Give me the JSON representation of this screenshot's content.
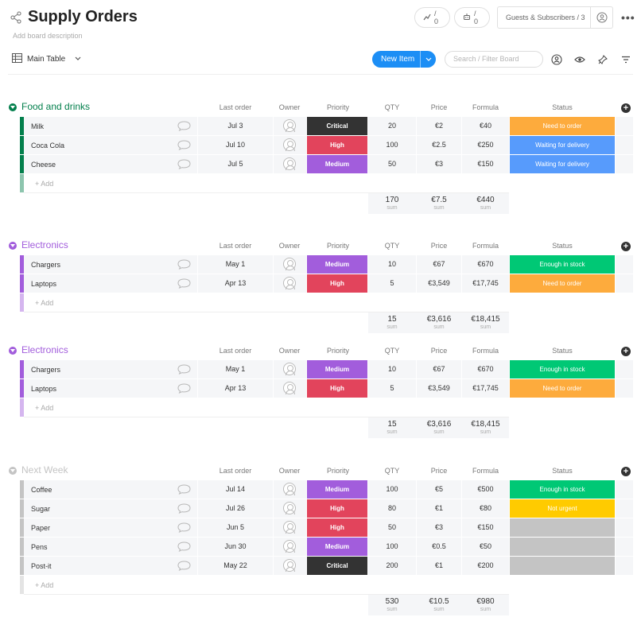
{
  "board": {
    "title": "Supply Orders",
    "description": "Add board description",
    "activity_count": "/ 0",
    "automations_count": "/ 0",
    "guests_label": "Guests & Subscribers / 3",
    "view_name": "Main Table",
    "new_item_label": "New Item",
    "search_placeholder": "Search / Filter Board"
  },
  "columns": {
    "last_order": "Last order",
    "owner": "Owner",
    "priority": "Priority",
    "qty": "QTY",
    "price": "Price",
    "formula": "Formula",
    "status": "Status"
  },
  "add_item_label": "+ Add",
  "sum_label": "sum",
  "colors": {
    "green": "#00854d",
    "purple": "#a25ddc",
    "gray": "#c4c4c4",
    "critical": "#333333",
    "high": "#e2445c",
    "medium": "#a25ddc",
    "need_to_order": "#fdab3d",
    "waiting": "#579bfc",
    "enough": "#00c875",
    "not_urgent": "#ffcb00",
    "empty": "#c4c4c4",
    "accent": "#1c8ef5"
  },
  "groups": [
    {
      "title": "Food and drinks",
      "color": "#037f4c",
      "rows": [
        {
          "name": "Milk",
          "last_order": "Jul 3",
          "priority": "Critical",
          "priority_color": "#333333",
          "qty": "20",
          "price": "€2",
          "formula": "€40",
          "status": "Need to order",
          "status_color": "#fdab3d"
        },
        {
          "name": "Coca Cola",
          "last_order": "Jul 10",
          "priority": "High",
          "priority_color": "#e2445c",
          "qty": "100",
          "price": "€2.5",
          "formula": "€250",
          "status": "Waiting for delivery",
          "status_color": "#579bfc"
        },
        {
          "name": "Cheese",
          "last_order": "Jul 5",
          "priority": "Medium",
          "priority_color": "#a25ddc",
          "qty": "50",
          "price": "€3",
          "formula": "€150",
          "status": "Waiting for delivery",
          "status_color": "#579bfc"
        }
      ],
      "sums": {
        "qty": "170",
        "price": "€7.5",
        "formula": "€440"
      }
    },
    {
      "title": "Electronics",
      "color": "#a25ddc",
      "rows": [
        {
          "name": "Chargers",
          "last_order": "May 1",
          "priority": "Medium",
          "priority_color": "#a25ddc",
          "qty": "10",
          "price": "€67",
          "formula": "€670",
          "status": "Enough in stock",
          "status_color": "#00c875"
        },
        {
          "name": "Laptops",
          "last_order": "Apr 13",
          "priority": "High",
          "priority_color": "#e2445c",
          "qty": "5",
          "price": "€3,549",
          "formula": "€17,745",
          "status": "Need to order",
          "status_color": "#fdab3d"
        }
      ],
      "sums": {
        "qty": "15",
        "price": "€3,616",
        "formula": "€18,415"
      }
    },
    {
      "title": "Electronics",
      "color": "#a25ddc",
      "rows": [
        {
          "name": "Chargers",
          "last_order": "May 1",
          "priority": "Medium",
          "priority_color": "#a25ddc",
          "qty": "10",
          "price": "€67",
          "formula": "€670",
          "status": "Enough in stock",
          "status_color": "#00c875"
        },
        {
          "name": "Laptops",
          "last_order": "Apr 13",
          "priority": "High",
          "priority_color": "#e2445c",
          "qty": "5",
          "price": "€3,549",
          "formula": "€17,745",
          "status": "Need to order",
          "status_color": "#fdab3d"
        }
      ],
      "sums": {
        "qty": "15",
        "price": "€3,616",
        "formula": "€18,415"
      }
    },
    {
      "title": "Next Week",
      "color": "#c4c4c4",
      "rows": [
        {
          "name": "Coffee",
          "last_order": "Jul 14",
          "priority": "Medium",
          "priority_color": "#a25ddc",
          "qty": "100",
          "price": "€5",
          "formula": "€500",
          "status": "Enough in stock",
          "status_color": "#00c875"
        },
        {
          "name": "Sugar",
          "last_order": "Jul 26",
          "priority": "High",
          "priority_color": "#e2445c",
          "qty": "80",
          "price": "€1",
          "formula": "€80",
          "status": "Not urgent",
          "status_color": "#ffcb00"
        },
        {
          "name": "Paper",
          "last_order": "Jun 5",
          "priority": "High",
          "priority_color": "#e2445c",
          "qty": "50",
          "price": "€3",
          "formula": "€150",
          "status": "",
          "status_color": "#c4c4c4"
        },
        {
          "name": "Pens",
          "last_order": "Jun 30",
          "priority": "Medium",
          "priority_color": "#a25ddc",
          "qty": "100",
          "price": "€0.5",
          "formula": "€50",
          "status": "",
          "status_color": "#c4c4c4"
        },
        {
          "name": "Post-it",
          "last_order": "May 22",
          "priority": "Critical",
          "priority_color": "#333333",
          "qty": "200",
          "price": "€1",
          "formula": "€200",
          "status": "",
          "status_color": "#c4c4c4"
        }
      ],
      "sums": {
        "qty": "530",
        "price": "€10.5",
        "formula": "€980"
      }
    }
  ]
}
